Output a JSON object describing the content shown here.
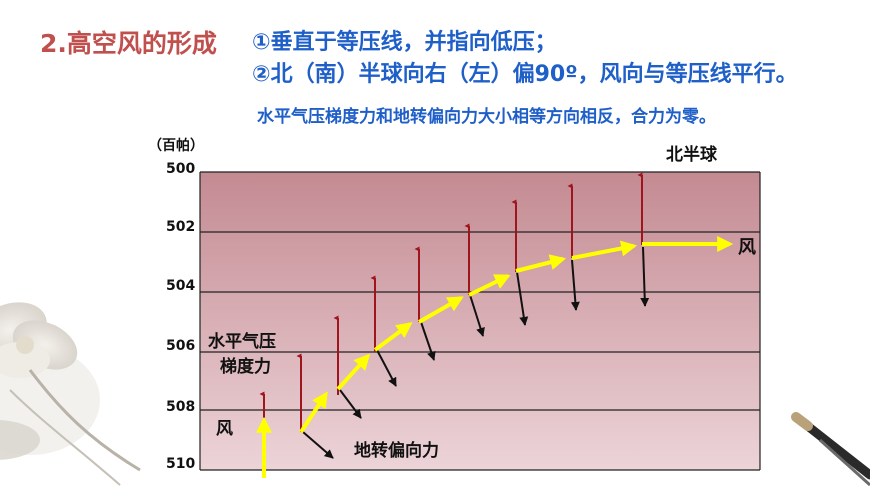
{
  "slide": {
    "title": "2.高空风的形成",
    "rule1": "①垂直于等压线，并指向低压；",
    "rule2": "②北（南）半球向右（左）偏90º，风向与等压线平行。",
    "note": "水平气压梯度力和地转偏向力大小相等方向相反，合力为零。"
  },
  "diagram": {
    "unit_label": "（百帕）",
    "hemisphere_label": "北半球",
    "isobars": [
      "500",
      "502",
      "504",
      "506",
      "508",
      "510"
    ],
    "pgf_label_line1": "水平气压",
    "pgf_label_line2": "梯度力",
    "wind_label_left": "风",
    "wind_label_right": "风",
    "coriolis_label": "地转偏向力"
  },
  "colors": {
    "title": "#c0504d",
    "text_blue": "#1f5fc8",
    "band_top": "#c48a92",
    "band_bottom": "#ecd4d8",
    "pgf_arrow": "#a0141e",
    "wind_arrow": "#ffff00",
    "coriolis_arrow": "#111111"
  },
  "icons": [
    "lotus-decoration",
    "ink-brush-decoration"
  ]
}
